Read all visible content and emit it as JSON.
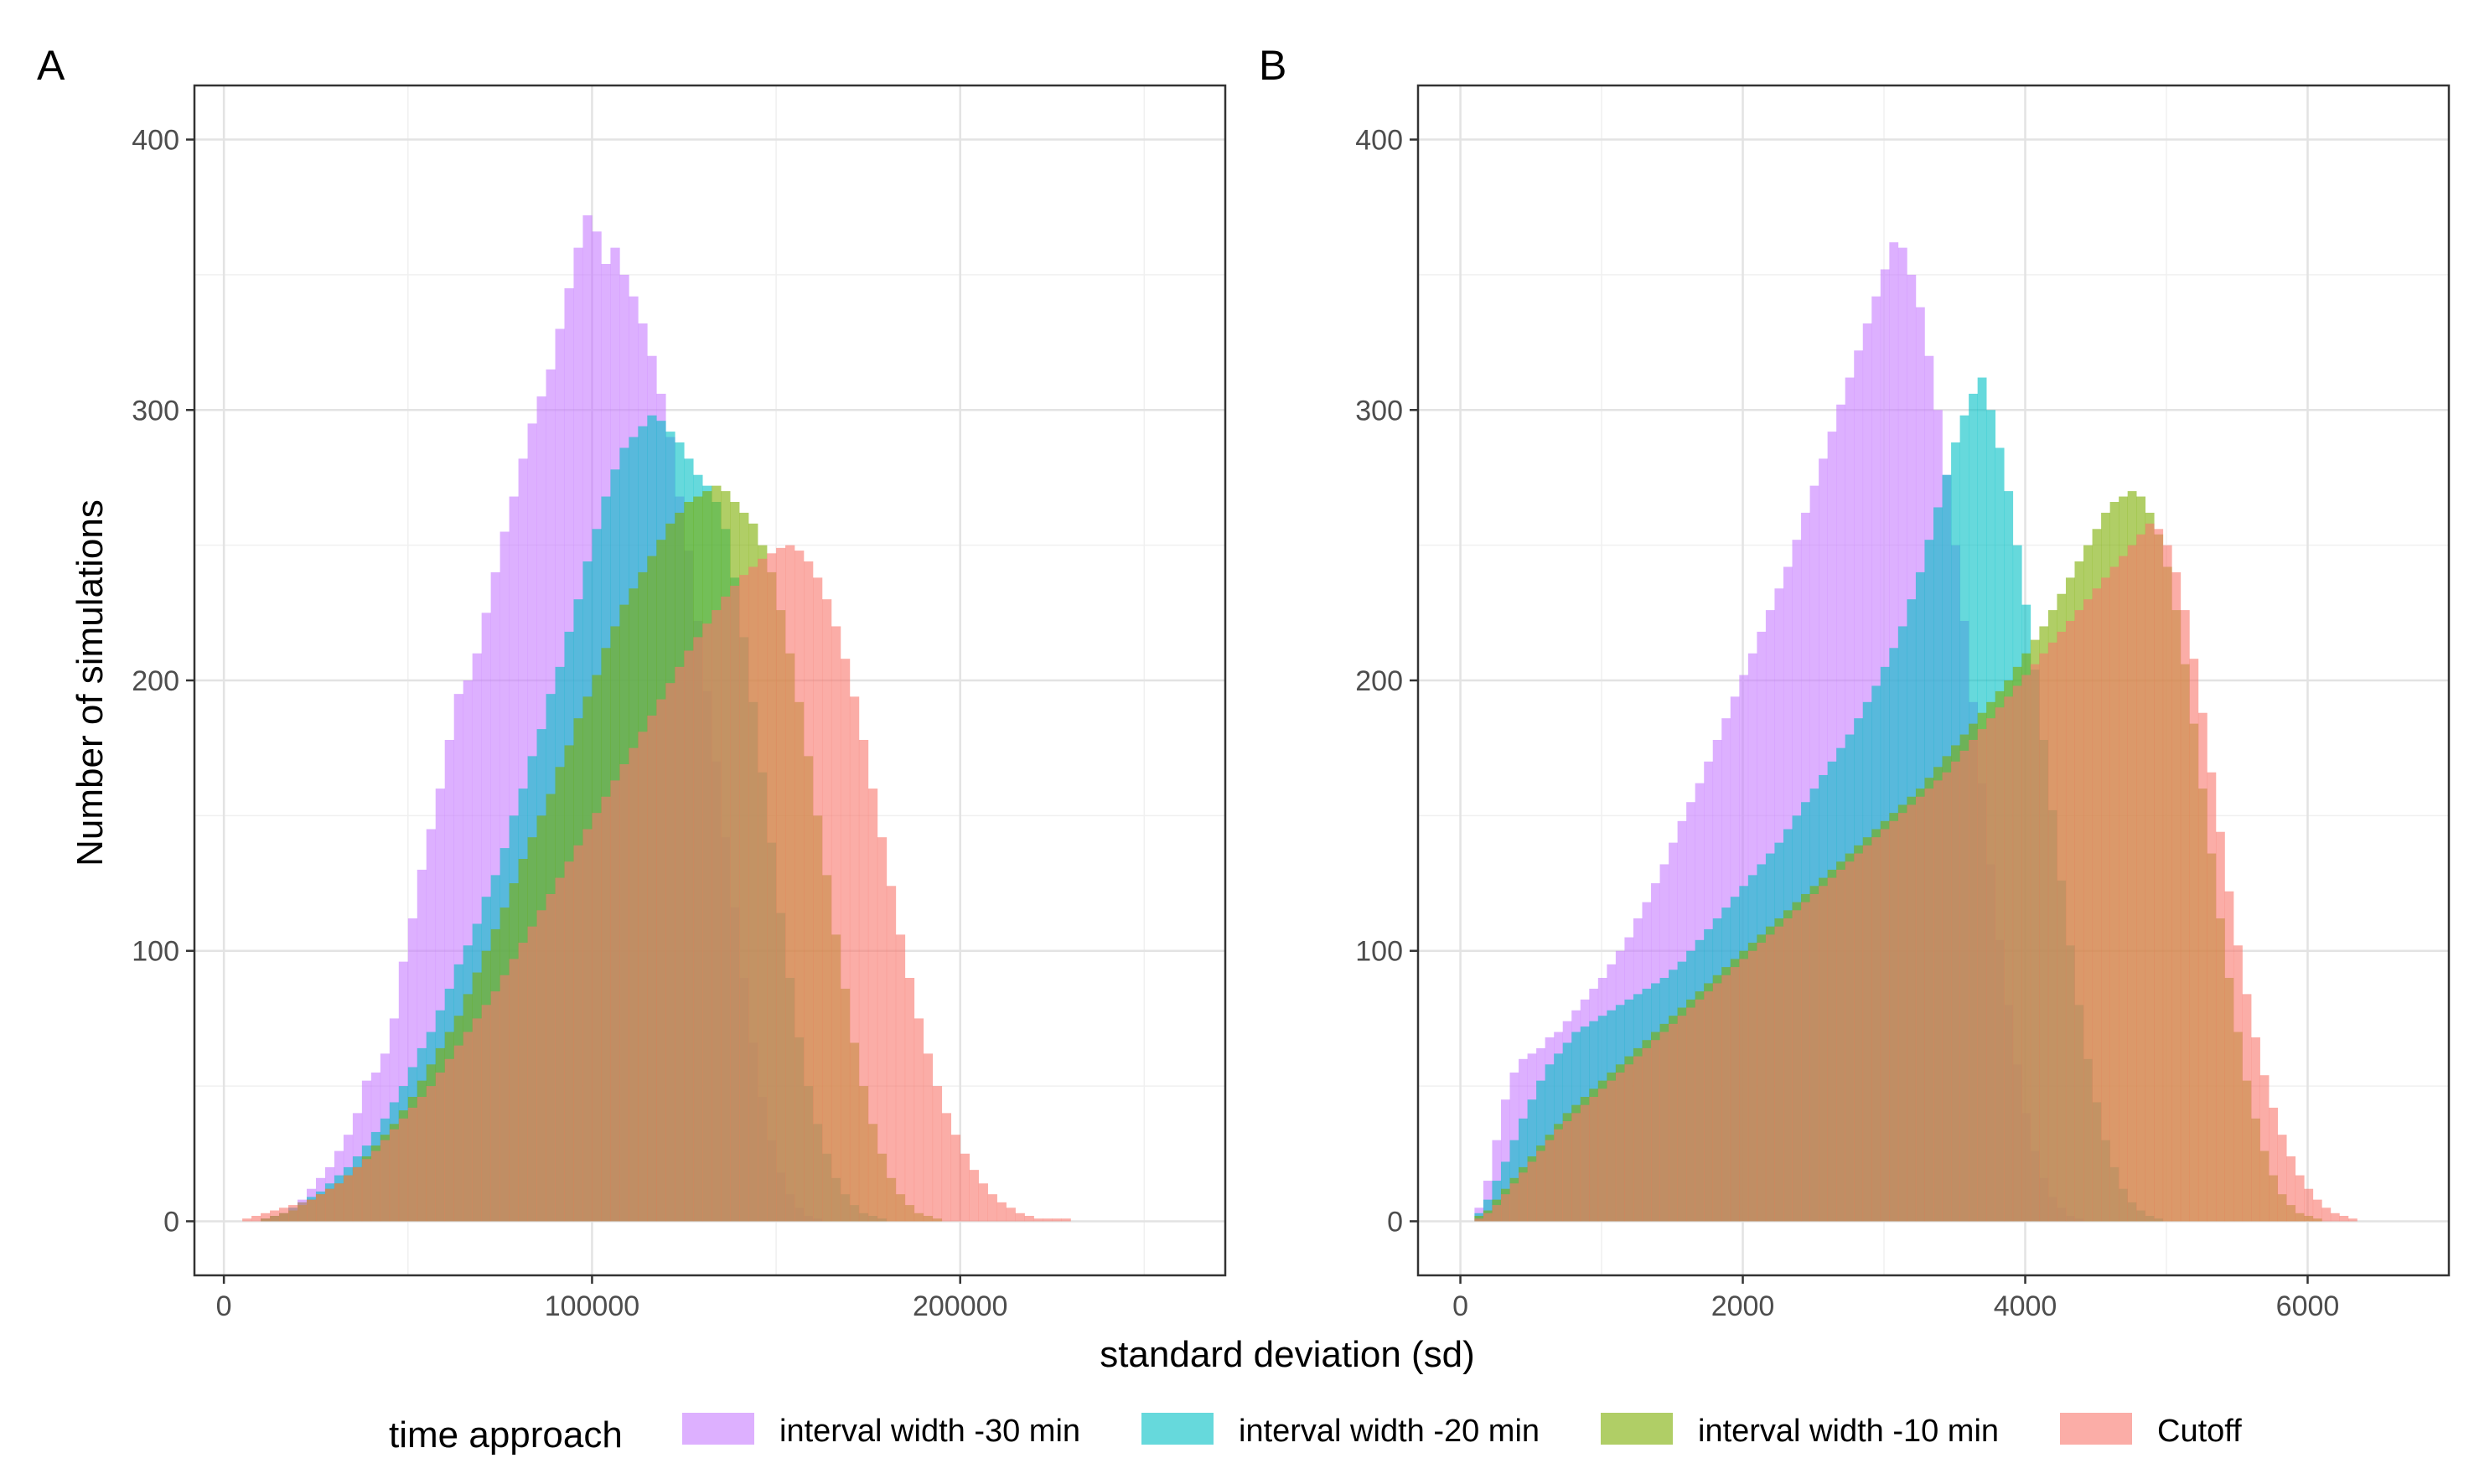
{
  "chart_data": {
    "type": "bar",
    "subtype": "overlapping histograms, two panels",
    "shared_xlabel": "standard deviation (sd)",
    "shared_ylabel": "Number of simulations",
    "legend": {
      "title": "time approach",
      "placement": "bottom",
      "entries": [
        {
          "label": "interval width -30 min",
          "color": "#C77CFF"
        },
        {
          "label": "interval width -20 min",
          "color": "#00BFC4"
        },
        {
          "label": "interval width -10 min",
          "color": "#7CAE00"
        },
        {
          "label": "Cutoff",
          "color": "#F8766D"
        }
      ]
    },
    "series_alpha": 0.6,
    "grid": true,
    "panels": [
      {
        "tag": "A",
        "xlim": [
          -8000,
          272000
        ],
        "ylim": [
          -20,
          420
        ],
        "xticks": [
          0,
          100000,
          200000
        ],
        "xtick_labels": [
          "0",
          "100000",
          "200000"
        ],
        "yticks": [
          0,
          100,
          200,
          300,
          400
        ],
        "ytick_labels": [
          "0",
          "100",
          "200",
          "300",
          "400"
        ],
        "bin_width": 2500,
        "series": [
          {
            "name": "interval width -30 min",
            "color": "#C77CFF",
            "x_start": 10000,
            "counts": [
              1,
              2,
              3,
              5,
              8,
              12,
              16,
              20,
              26,
              32,
              40,
              52,
              55,
              62,
              75,
              96,
              112,
              130,
              145,
              160,
              178,
              195,
              200,
              210,
              225,
              240,
              255,
              268,
              282,
              295,
              305,
              315,
              330,
              345,
              360,
              372,
              366,
              354,
              360,
              350,
              342,
              332,
              320,
              306,
              290,
              268,
              248,
              222,
              196,
              170,
              142,
              116,
              90,
              66,
              46,
              30,
              18,
              10,
              5,
              2,
              1
            ]
          },
          {
            "name": "interval width -20 min",
            "color": "#00BFC4",
            "x_start": 10000,
            "counts": [
              1,
              2,
              3,
              5,
              7,
              9,
              11,
              14,
              17,
              20,
              24,
              28,
              33,
              38,
              44,
              50,
              57,
              64,
              70,
              78,
              86,
              95,
              102,
              110,
              120,
              128,
              138,
              150,
              160,
              172,
              182,
              195,
              205,
              218,
              230,
              244,
              256,
              268,
              278,
              286,
              290,
              294,
              298,
              296,
              292,
              288,
              282,
              276,
              272,
              266,
              256,
              238,
              216,
              192,
              166,
              140,
              114,
              90,
              68,
              50,
              36,
              25,
              16,
              10,
              6,
              3,
              2,
              1
            ]
          },
          {
            "name": "interval width -10 min",
            "color": "#7CAE00",
            "x_start": 10000,
            "counts": [
              1,
              2,
              3,
              4,
              6,
              8,
              10,
              12,
              14,
              17,
              20,
              24,
              28,
              32,
              36,
              41,
              46,
              52,
              58,
              64,
              70,
              76,
              84,
              92,
              100,
              108,
              116,
              125,
              134,
              142,
              150,
              158,
              168,
              176,
              186,
              194,
              202,
              212,
              220,
              228,
              234,
              240,
              246,
              252,
              258,
              262,
              266,
              268,
              270,
              272,
              270,
              266,
              262,
              258,
              250,
              240,
              226,
              210,
              192,
              172,
              150,
              128,
              106,
              86,
              66,
              50,
              36,
              25,
              16,
              10,
              6,
              3,
              2,
              1
            ]
          },
          {
            "name": "Cutoff",
            "color": "#F8766D",
            "x_start": 5000,
            "counts": [
              1,
              2,
              3,
              4,
              5,
              6,
              7,
              8,
              10,
              12,
              14,
              17,
              20,
              23,
              26,
              30,
              34,
              38,
              42,
              46,
              50,
              55,
              60,
              65,
              70,
              75,
              80,
              85,
              91,
              97,
              103,
              109,
              115,
              121,
              127,
              133,
              139,
              145,
              151,
              157,
              163,
              169,
              175,
              181,
              187,
              193,
              199,
              205,
              211,
              216,
              221,
              226,
              231,
              235,
              239,
              242,
              245,
              247,
              249,
              250,
              248,
              244,
              238,
              230,
              220,
              208,
              194,
              178,
              160,
              142,
              124,
              106,
              90,
              75,
              62,
              50,
              40,
              32,
              25,
              19,
              14,
              10,
              7,
              5,
              3,
              2,
              1,
              1,
              1,
              1
            ]
          }
        ]
      },
      {
        "tag": "B",
        "xlim": [
          -300,
          7000
        ],
        "ylim": [
          -20,
          420
        ],
        "xticks": [
          0,
          2000,
          4000,
          6000
        ],
        "xtick_labels": [
          "0",
          "2000",
          "4000",
          "6000"
        ],
        "yticks": [
          0,
          100,
          200,
          300,
          400
        ],
        "ytick_labels": [
          "0",
          "100",
          "200",
          "300",
          "400"
        ],
        "bin_width": 62.5,
        "series": [
          {
            "name": "interval width -30 min",
            "color": "#C77CFF",
            "x_start": 100,
            "counts": [
              5,
              15,
              30,
              45,
              55,
              60,
              62,
              64,
              68,
              70,
              74,
              78,
              82,
              86,
              90,
              95,
              100,
              105,
              112,
              118,
              125,
              132,
              140,
              148,
              155,
              162,
              170,
              178,
              186,
              194,
              202,
              210,
              218,
              226,
              234,
              242,
              252,
              262,
              272,
              282,
              292,
              302,
              312,
              322,
              332,
              342,
              352,
              362,
              360,
              350,
              338,
              320,
              300,
              276,
              250,
              222,
              192,
              162,
              132,
              104,
              80,
              58,
              40,
              26,
              16,
              9,
              5,
              2,
              1
            ]
          },
          {
            "name": "interval width -20 min",
            "color": "#00BFC4",
            "x_start": 100,
            "counts": [
              3,
              8,
              15,
              22,
              30,
              38,
              45,
              52,
              58,
              62,
              66,
              70,
              72,
              74,
              76,
              78,
              80,
              82,
              84,
              86,
              88,
              90,
              93,
              96,
              100,
              104,
              108,
              112,
              116,
              120,
              124,
              128,
              132,
              136,
              140,
              145,
              150,
              155,
              160,
              165,
              170,
              175,
              180,
              186,
              192,
              198,
              205,
              212,
              220,
              230,
              240,
              252,
              264,
              276,
              288,
              298,
              306,
              312,
              300,
              286,
              270,
              250,
              228,
              204,
              178,
              152,
              126,
              102,
              80,
              60,
              44,
              30,
              20,
              12,
              7,
              4,
              2,
              1
            ]
          },
          {
            "name": "interval width -10 min",
            "color": "#7CAE00",
            "x_start": 100,
            "counts": [
              2,
              4,
              8,
              12,
              16,
              20,
              24,
              28,
              32,
              36,
              40,
              43,
              46,
              49,
              52,
              55,
              58,
              61,
              64,
              67,
              70,
              73,
              76,
              79,
              82,
              85,
              88,
              91,
              94,
              97,
              100,
              103,
              106,
              109,
              112,
              115,
              118,
              121,
              124,
              127,
              130,
              133,
              136,
              139,
              142,
              145,
              148,
              151,
              154,
              157,
              160,
              164,
              168,
              172,
              176,
              180,
              184,
              188,
              192,
              196,
              200,
              205,
              210,
              215,
              220,
              226,
              232,
              238,
              244,
              250,
              256,
              262,
              266,
              268,
              270,
              268,
              262,
              254,
              242,
              226,
              206,
              184,
              160,
              136,
              112,
              90,
              70,
              52,
              38,
              26,
              17,
              10,
              6,
              3,
              2,
              1
            ]
          },
          {
            "name": "Cutoff",
            "color": "#F8766D",
            "x_start": 100,
            "counts": [
              1,
              3,
              6,
              10,
              14,
              18,
              22,
              26,
              30,
              34,
              37,
              40,
              43,
              46,
              49,
              52,
              55,
              58,
              61,
              64,
              67,
              70,
              73,
              76,
              79,
              82,
              85,
              88,
              91,
              94,
              97,
              100,
              103,
              106,
              109,
              112,
              115,
              118,
              121,
              124,
              127,
              130,
              133,
              136,
              139,
              142,
              145,
              148,
              151,
              154,
              157,
              160,
              163,
              166,
              170,
              174,
              178,
              182,
              186,
              190,
              194,
              198,
              202,
              206,
              210,
              214,
              218,
              222,
              226,
              230,
              234,
              238,
              242,
              246,
              250,
              254,
              258,
              256,
              250,
              240,
              226,
              208,
              188,
              166,
              144,
              122,
              102,
              84,
              68,
              54,
              42,
              32,
              24,
              17,
              12,
              8,
              5,
              3,
              2,
              1
            ]
          }
        ]
      }
    ]
  }
}
